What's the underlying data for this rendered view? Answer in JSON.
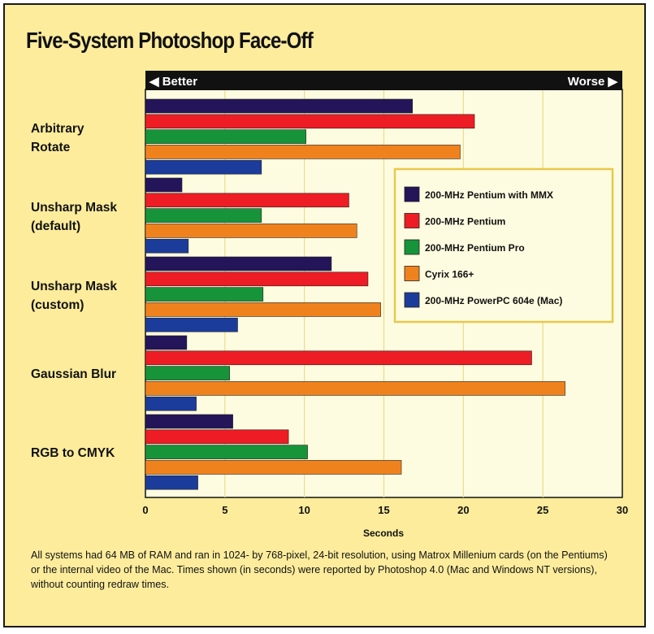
{
  "chart_data": {
    "type": "bar",
    "orientation": "horizontal",
    "title": "Five-System Photoshop Face-Off",
    "better_label": "◀ Better",
    "worse_label": "Worse ▶",
    "xlabel": "Seconds",
    "xlim": [
      0,
      30
    ],
    "xticks": [
      "0",
      "5",
      "10",
      "15",
      "20",
      "25",
      "30"
    ],
    "grid": true,
    "legend_position": "right",
    "categories": [
      {
        "line1": "Arbitrary",
        "line2": "Rotate"
      },
      {
        "line1": "Unsharp Mask",
        "line2": "(default)"
      },
      {
        "line1": "Unsharp Mask",
        "line2": "(custom)"
      },
      {
        "line1": "Gaussian Blur",
        "line2": ""
      },
      {
        "line1": "RGB to CMYK",
        "line2": ""
      }
    ],
    "series": [
      {
        "name": "200-MHz Pentium with MMX",
        "color": "#24145a",
        "values": [
          16.8,
          2.3,
          11.7,
          2.6,
          5.5
        ]
      },
      {
        "name": "200-MHz Pentium",
        "color": "#ee1c24",
        "values": [
          20.7,
          12.8,
          14.0,
          24.3,
          9.0
        ]
      },
      {
        "name": "200-MHz Pentium Pro",
        "color": "#17943a",
        "values": [
          10.1,
          7.3,
          7.4,
          5.3,
          10.2
        ]
      },
      {
        "name": "Cyrix 166+",
        "color": "#f0821e",
        "values": [
          19.8,
          13.3,
          14.8,
          26.4,
          16.1
        ]
      },
      {
        "name": "200-MHz PowerPC 604e (Mac)",
        "color": "#1c3c9c",
        "values": [
          7.3,
          2.7,
          5.8,
          3.2,
          3.3
        ]
      }
    ]
  },
  "caption": "All systems had 64 MB of RAM and ran in 1024- by 768-pixel, 24-bit resolution, using Matrox Millenium cards (on the Pentiums) or the internal video of the Mac. Times shown (in seconds) were reported by Photoshop 4.0 (Mac and Windows NT versions), without counting redraw times."
}
